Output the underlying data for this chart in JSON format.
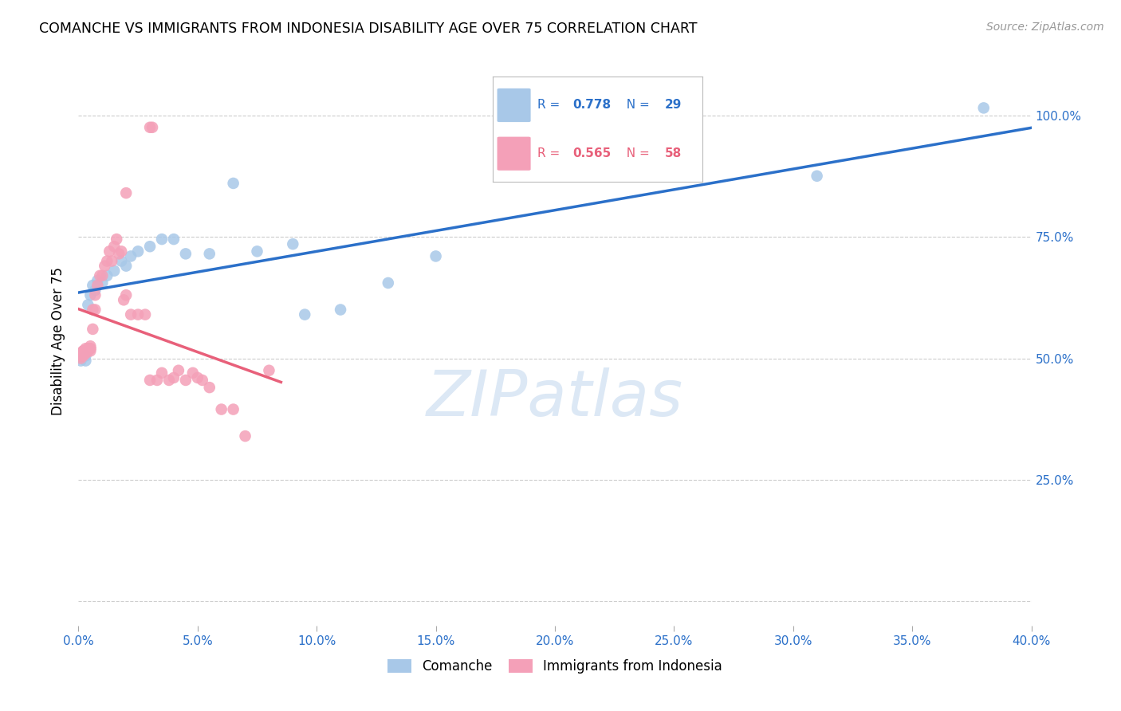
{
  "title": "COMANCHE VS IMMIGRANTS FROM INDONESIA DISABILITY AGE OVER 75 CORRELATION CHART",
  "source": "Source: ZipAtlas.com",
  "ylabel": "Disability Age Over 75",
  "R_comanche": 0.778,
  "N_comanche": 29,
  "R_indonesia": 0.565,
  "N_indonesia": 58,
  "comanche_color": "#a8c8e8",
  "indonesia_color": "#f4a0b8",
  "comanche_line_color": "#2b70c9",
  "indonesia_line_color": "#e8607a",
  "xlim": [
    0.0,
    0.4
  ],
  "ylim": [
    -0.05,
    1.12
  ],
  "ytick_positions": [
    0.0,
    0.25,
    0.5,
    0.75,
    1.0
  ],
  "ytick_labels": [
    "",
    "25.0%",
    "50.0%",
    "75.0%",
    "100.0%"
  ],
  "xtick_positions": [
    0.0,
    0.05,
    0.1,
    0.15,
    0.2,
    0.25,
    0.3,
    0.35,
    0.4
  ],
  "comanche_x": [
    0.001,
    0.003,
    0.003,
    0.004,
    0.005,
    0.006,
    0.007,
    0.008,
    0.01,
    0.012,
    0.015,
    0.018,
    0.02,
    0.022,
    0.025,
    0.03,
    0.035,
    0.04,
    0.045,
    0.055,
    0.065,
    0.075,
    0.09,
    0.095,
    0.11,
    0.13,
    0.15,
    0.31,
    0.38
  ],
  "comanche_y": [
    0.495,
    0.495,
    0.505,
    0.61,
    0.63,
    0.65,
    0.64,
    0.66,
    0.655,
    0.67,
    0.68,
    0.7,
    0.69,
    0.71,
    0.72,
    0.73,
    0.745,
    0.745,
    0.715,
    0.715,
    0.86,
    0.72,
    0.735,
    0.59,
    0.6,
    0.655,
    0.71,
    0.875,
    1.015
  ],
  "indonesia_x": [
    0.001,
    0.001,
    0.001,
    0.001,
    0.001,
    0.002,
    0.002,
    0.002,
    0.002,
    0.002,
    0.003,
    0.003,
    0.003,
    0.003,
    0.004,
    0.004,
    0.005,
    0.005,
    0.005,
    0.005,
    0.006,
    0.006,
    0.007,
    0.007,
    0.008,
    0.009,
    0.01,
    0.011,
    0.012,
    0.013,
    0.014,
    0.015,
    0.016,
    0.017,
    0.018,
    0.019,
    0.02,
    0.022,
    0.025,
    0.028,
    0.03,
    0.033,
    0.035,
    0.038,
    0.04,
    0.042,
    0.045,
    0.048,
    0.05,
    0.052,
    0.055,
    0.06,
    0.065,
    0.07,
    0.08,
    0.02,
    0.03,
    0.031
  ],
  "indonesia_y": [
    0.5,
    0.505,
    0.505,
    0.51,
    0.51,
    0.505,
    0.51,
    0.515,
    0.51,
    0.515,
    0.51,
    0.515,
    0.52,
    0.515,
    0.52,
    0.515,
    0.52,
    0.525,
    0.515,
    0.52,
    0.56,
    0.6,
    0.6,
    0.63,
    0.65,
    0.67,
    0.67,
    0.69,
    0.7,
    0.72,
    0.7,
    0.73,
    0.745,
    0.715,
    0.72,
    0.62,
    0.63,
    0.59,
    0.59,
    0.59,
    0.455,
    0.455,
    0.47,
    0.455,
    0.46,
    0.475,
    0.455,
    0.47,
    0.46,
    0.455,
    0.44,
    0.395,
    0.395,
    0.34,
    0.475,
    0.84,
    0.975,
    0.975
  ],
  "watermark_text": "ZIPatlas",
  "watermark_color": "#dce8f5",
  "legend_R_color_comanche": "#2b70c9",
  "legend_R_color_indonesia": "#e8607a"
}
